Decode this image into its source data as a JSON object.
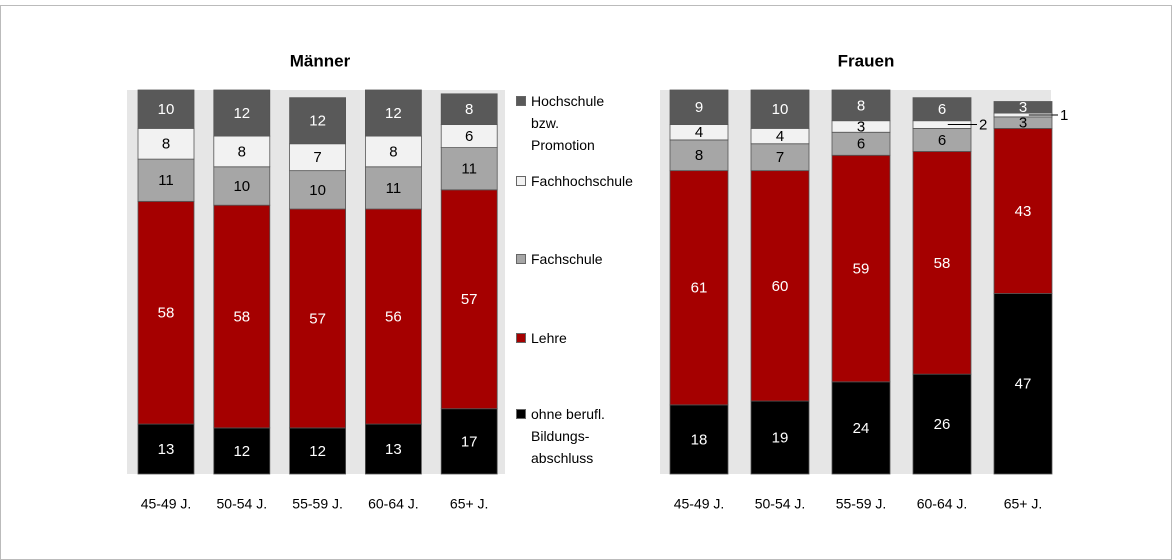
{
  "legend": {
    "items": [
      {
        "name": "ohne berufl. Bildungs- abschluss",
        "color": "#000000"
      },
      {
        "name": "Lehre",
        "color": "#a50000"
      },
      {
        "name": "Fachschule",
        "color": "#a6a6a6"
      },
      {
        "name": "Fachhochschule",
        "color": "#f2f2f2"
      },
      {
        "name": "Hochschule bzw. Promotion",
        "color": "#595959"
      }
    ]
  },
  "chart_data": [
    {
      "type": "stacked_bar",
      "title": "Männer",
      "categories": [
        "45-49 J.",
        "50-54 J.",
        "55-59 J.",
        "60-64 J.",
        "65+ J."
      ],
      "series": [
        {
          "values": [
            13,
            12,
            12,
            13,
            17
          ]
        },
        {
          "values": [
            58,
            58,
            57,
            56,
            57
          ]
        },
        {
          "values": [
            11,
            10,
            10,
            11,
            11
          ]
        },
        {
          "values": [
            8,
            8,
            7,
            8,
            6
          ]
        },
        {
          "values": [
            10,
            12,
            12,
            12,
            8
          ]
        }
      ],
      "ylim": [
        0,
        100
      ]
    },
    {
      "type": "stacked_bar",
      "title": "Frauen",
      "categories": [
        "45-49 J.",
        "50-54 J.",
        "55-59 J.",
        "60-64 J.",
        "65+ J."
      ],
      "series": [
        {
          "values": [
            18,
            19,
            24,
            26,
            47
          ]
        },
        {
          "values": [
            61,
            60,
            59,
            58,
            43
          ]
        },
        {
          "values": [
            8,
            7,
            6,
            6,
            3
          ]
        },
        {
          "values": [
            4,
            4,
            3,
            2,
            1
          ]
        },
        {
          "values": [
            9,
            10,
            8,
            6,
            3
          ]
        }
      ],
      "ylim": [
        0,
        100
      ]
    }
  ]
}
